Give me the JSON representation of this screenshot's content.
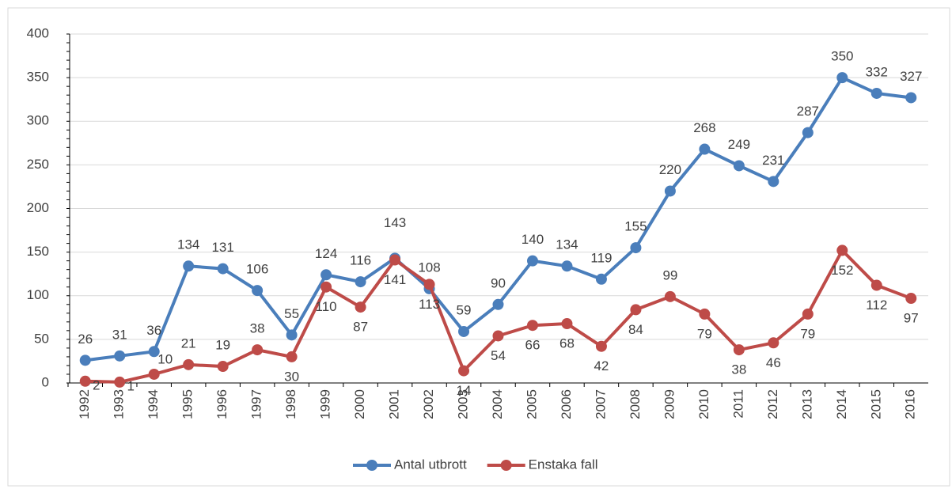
{
  "chart_data": {
    "type": "line",
    "categories": [
      "1992",
      "1993",
      "1994",
      "1995",
      "1996",
      "1997",
      "1998",
      "1999",
      "2000",
      "2001",
      "2002",
      "2003",
      "2004",
      "2005",
      "2006",
      "2007",
      "2008",
      "2009",
      "2010",
      "2011",
      "2012",
      "2013",
      "2014",
      "2015",
      "2016"
    ],
    "series": [
      {
        "name": "Antal utbrott",
        "color": "#4a7ebb",
        "values": [
          26,
          31,
          36,
          134,
          131,
          106,
          55,
          124,
          116,
          143,
          108,
          59,
          90,
          140,
          134,
          119,
          155,
          220,
          268,
          249,
          231,
          287,
          350,
          332,
          327
        ]
      },
      {
        "name": "Enstaka fall",
        "color": "#be4b48",
        "values": [
          2,
          1,
          10,
          21,
          19,
          38,
          30,
          110,
          87,
          141,
          113,
          14,
          54,
          66,
          68,
          42,
          84,
          99,
          79,
          38,
          46,
          79,
          152,
          112,
          97
        ]
      }
    ],
    "ylim": [
      0,
      400
    ],
    "yticks": [
      0,
      50,
      100,
      150,
      200,
      250,
      300,
      350,
      400
    ],
    "grid": true,
    "legend": "bottom"
  }
}
